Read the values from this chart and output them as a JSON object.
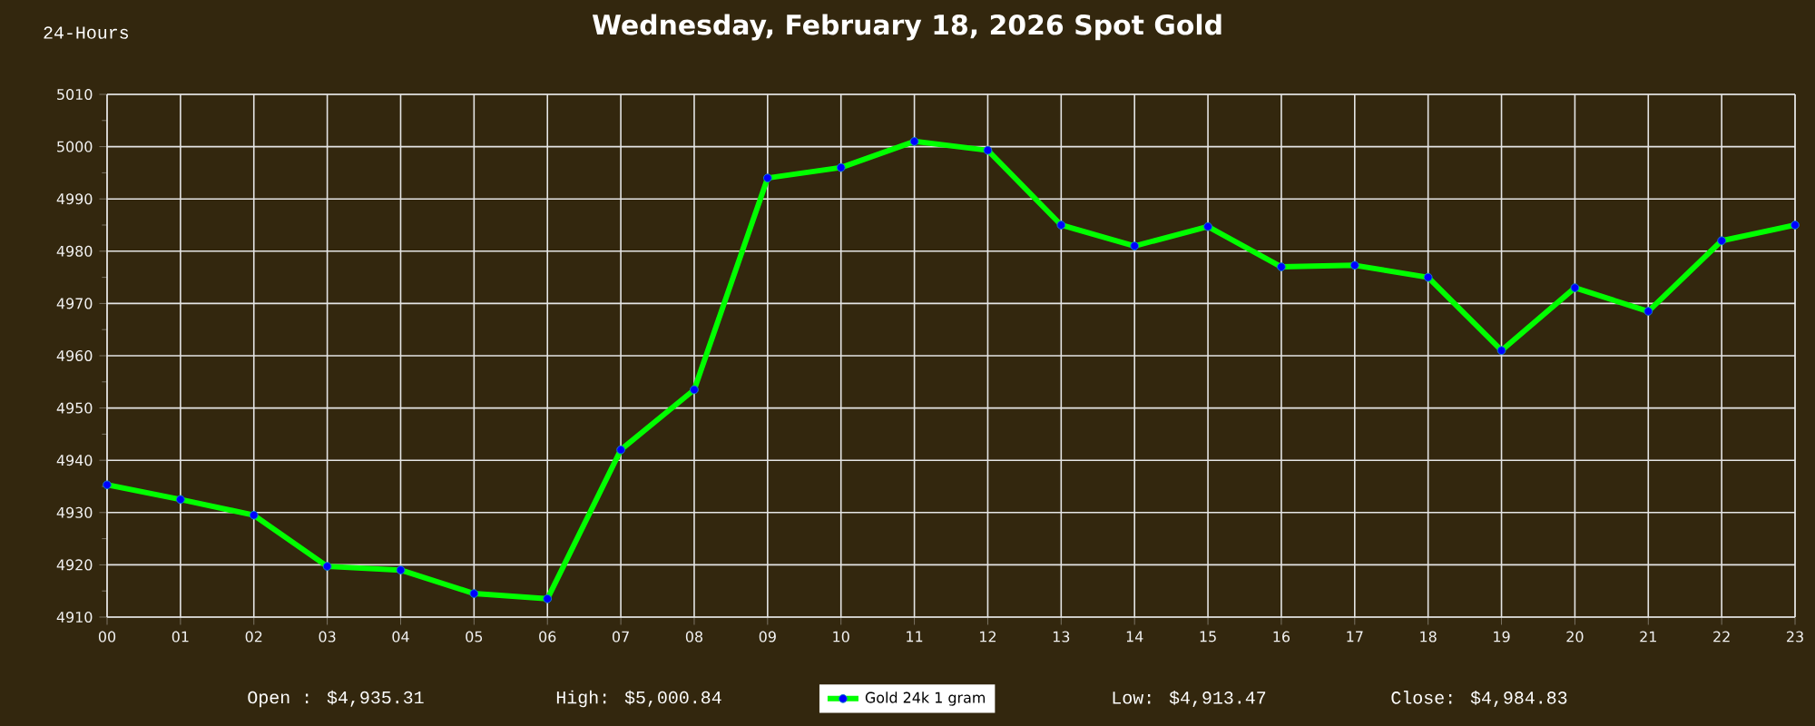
{
  "chart_data": {
    "type": "line",
    "title": "Wednesday, February 18, 2026 Spot Gold",
    "categories": [
      "00",
      "01",
      "02",
      "03",
      "04",
      "05",
      "06",
      "07",
      "08",
      "09",
      "10",
      "11",
      "12",
      "13",
      "14",
      "15",
      "16",
      "17",
      "18",
      "19",
      "20",
      "21",
      "22",
      "23"
    ],
    "series": [
      {
        "name": "Gold 24k 1 gram",
        "color": "#00ff00",
        "values": [
          4935.3,
          4932.5,
          4929.5,
          4919.7,
          4919,
          4914.5,
          4913.5,
          4942,
          4953.5,
          4994,
          4996,
          5001,
          4999.3,
          4985,
          4981,
          4984.7,
          4977,
          4977.3,
          4975,
          4961,
          4973,
          4968.5,
          4982,
          4985
        ]
      }
    ],
    "ylim": [
      4910,
      5010
    ],
    "yticks": [
      4910,
      4920,
      4930,
      4940,
      4950,
      4960,
      4970,
      4980,
      4990,
      5000,
      5010
    ],
    "grid": true,
    "marker": "circle",
    "line_style": "solid",
    "legend": "bottom",
    "annotations": [
      "24-Hours",
      "Open : $4,935.31",
      "High: $5,000.84",
      "Low: $4,913.47",
      "Close: $4,984.83"
    ]
  }
}
